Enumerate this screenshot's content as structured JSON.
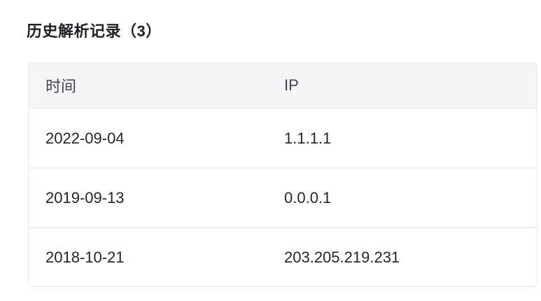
{
  "page": {
    "title": "历史解析记录（3）",
    "record_count": "3"
  },
  "table": {
    "columns": [
      {
        "key": "time",
        "label": "时间"
      },
      {
        "key": "ip",
        "label": "IP"
      }
    ],
    "rows": [
      {
        "time": "2022-09-04",
        "ip": "1.1.1.1"
      },
      {
        "time": "2019-09-13",
        "ip": "0.0.0.1"
      },
      {
        "time": "2018-10-21",
        "ip": "203.205.219.231"
      }
    ]
  },
  "colors": {
    "page_background": "#ffffff",
    "title_text": "#1d2025",
    "table_border": "#e8eaec",
    "header_background": "#f4f5f7",
    "header_text": "#40444b",
    "row_separator": "#eef0f2",
    "cell_text": "#22252a"
  }
}
